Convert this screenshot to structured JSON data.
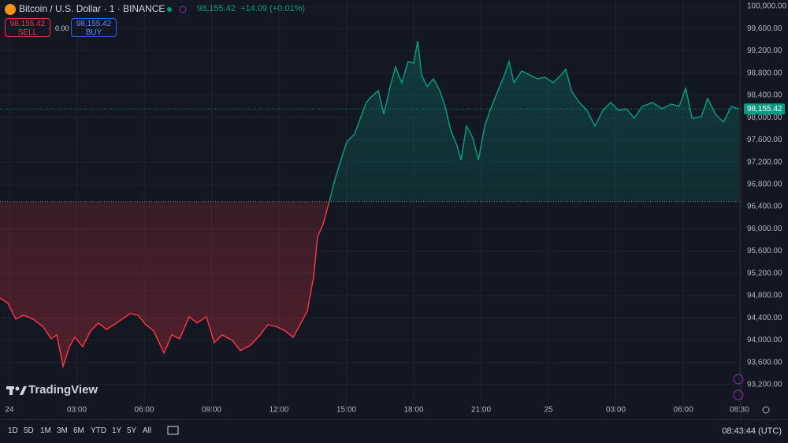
{
  "ui": {
    "symbol": "Bitcoin / U.S. Dollar · 1 · BINANCE",
    "header_price": "98,155.42",
    "header_change": "+14.09 (+0.01%)",
    "sell_price": "98,155.42",
    "sell_label": "SELL",
    "spread": "0.00",
    "buy_price": "98,155.42",
    "buy_label": "BUY",
    "brand": "TradingView",
    "ranges": [
      "1D",
      "5D",
      "1M",
      "3M",
      "6M",
      "YTD",
      "1Y",
      "5Y",
      "All"
    ],
    "clock": "08:43:44 (UTC)"
  },
  "chart_data": {
    "type": "line",
    "x": [
      -0.42,
      -0.07,
      0.28,
      0.63,
      1.05,
      1.51,
      1.86,
      2.11,
      2.39,
      2.67,
      2.91,
      3.26,
      3.61,
      3.96,
      4.32,
      4.67,
      5.02,
      5.37,
      5.72,
      6.07,
      6.42,
      6.88,
      7.23,
      7.58,
      8.0,
      8.35,
      8.77,
      9.12,
      9.47,
      9.93,
      10.28,
      10.74,
      11.16,
      11.51,
      11.93,
      12.28,
      12.63,
      12.98,
      13.26,
      13.54,
      13.72,
      13.96,
      14.25,
      14.49,
      14.74,
      15.02,
      15.37,
      15.65,
      15.89,
      16.14,
      16.42,
      16.67,
      16.95,
      17.19,
      17.47,
      17.75,
      18.0,
      18.18,
      18.35,
      18.6,
      18.88,
      19.16,
      19.4,
      19.65,
      19.93,
      20.11,
      20.35,
      20.63,
      20.88,
      21.16,
      21.4,
      21.75,
      22.04,
      22.25,
      22.46,
      22.81,
      23.16,
      23.51,
      23.86,
      24.21,
      24.56,
      24.77,
      25.02,
      25.37,
      25.72,
      26.07,
      26.42,
      26.77,
      27.12,
      27.47,
      27.82,
      28.18,
      28.63,
      29.05,
      29.47,
      29.82,
      30.11,
      30.39,
      30.81,
      31.09,
      31.44,
      31.79,
      32.14,
      32.49
    ],
    "values": [
      94759,
      94660,
      94377,
      94448,
      94377,
      94235,
      94023,
      94093,
      93527,
      93881,
      94051,
      93881,
      94164,
      94306,
      94193,
      94278,
      94377,
      94476,
      94448,
      94278,
      94164,
      93768,
      94093,
      94023,
      94419,
      94306,
      94419,
      93952,
      94093,
      93994,
      93810,
      93909,
      94093,
      94278,
      94235,
      94164,
      94051,
      94306,
      94518,
      95127,
      95864,
      96076,
      96501,
      96884,
      97210,
      97564,
      97705,
      98017,
      98272,
      98385,
      98484,
      98059,
      98555,
      98909,
      98626,
      99008,
      98980,
      99377,
      98767,
      98555,
      98697,
      98484,
      98201,
      97776,
      97493,
      97238,
      97847,
      97635,
      97238,
      97847,
      98130,
      98484,
      98767,
      99008,
      98626,
      98839,
      98767,
      98697,
      98725,
      98626,
      98767,
      98867,
      98484,
      98272,
      98130,
      97847,
      98130,
      98272,
      98130,
      98159,
      97989,
      98201,
      98272,
      98159,
      98244,
      98201,
      98527,
      97989,
      98017,
      98342,
      98059,
      97918,
      98201,
      98155.42
    ],
    "baseline": 96490,
    "colors": {
      "above": "#089981",
      "below": "#f23645"
    },
    "last_price": {
      "value": 98155.42,
      "label": "98,155.42"
    },
    "xlim": [
      -0.42,
      32.56
    ],
    "ylim": [
      92900,
      100100
    ],
    "xticks": [
      {
        "value": 0,
        "label": "24"
      },
      {
        "value": 3,
        "label": "03:00"
      },
      {
        "value": 6,
        "label": "06:00"
      },
      {
        "value": 9,
        "label": "09:00"
      },
      {
        "value": 12,
        "label": "12:00"
      },
      {
        "value": 15,
        "label": "15:00"
      },
      {
        "value": 18,
        "label": "18:00"
      },
      {
        "value": 21,
        "label": "21:00"
      },
      {
        "value": 24,
        "label": "25"
      },
      {
        "value": 27,
        "label": "03:00"
      },
      {
        "value": 30,
        "label": "06:00"
      },
      {
        "value": 32.5,
        "label": "08:30"
      }
    ],
    "yticks": [
      {
        "value": 93200,
        "label": "93,200.00"
      },
      {
        "value": 93600,
        "label": "93,600.00"
      },
      {
        "value": 94000,
        "label": "94,000.00"
      },
      {
        "value": 94400,
        "label": "94,400.00"
      },
      {
        "value": 94800,
        "label": "94,800.00"
      },
      {
        "value": 95200,
        "label": "95,200.00"
      },
      {
        "value": 95600,
        "label": "95,600.00"
      },
      {
        "value": 96000,
        "label": "96,000.00"
      },
      {
        "value": 96400,
        "label": "96,400.00"
      },
      {
        "value": 96800,
        "label": "96,800.00"
      },
      {
        "value": 97200,
        "label": "97,200.00"
      },
      {
        "value": 97600,
        "label": "97,600.00"
      },
      {
        "value": 98000,
        "label": "98,000.00"
      },
      {
        "value": 98400,
        "label": "98,400.00"
      },
      {
        "value": 98800,
        "label": "98,800.00"
      },
      {
        "value": 99200,
        "label": "99,200.00"
      },
      {
        "value": 99600,
        "label": "99,600.00"
      },
      {
        "value": 100000,
        "label": "100,000.00"
      }
    ],
    "grid": true
  }
}
